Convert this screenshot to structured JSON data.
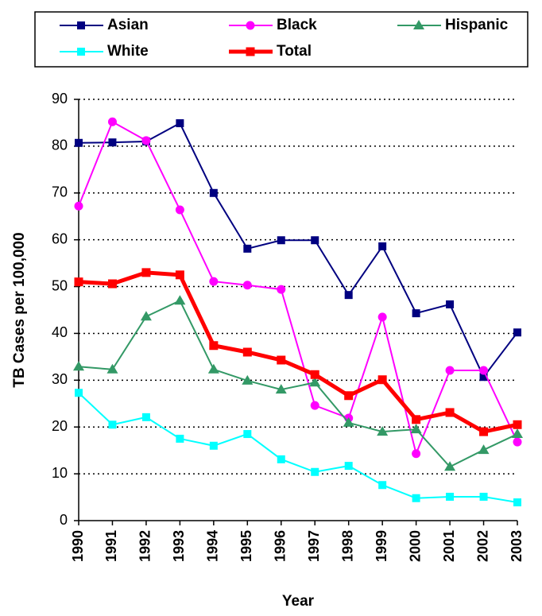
{
  "chart_data": {
    "type": "line",
    "x_label": "Year",
    "y_label": "TB Cases per 100,000",
    "categories": [
      "1990",
      "1991",
      "1992",
      "1993",
      "1994",
      "1995",
      "1996",
      "1997",
      "1998",
      "1999",
      "2000",
      "2001",
      "2002",
      "2003"
    ],
    "ylim": [
      0,
      90
    ],
    "yticks": [
      0,
      10,
      20,
      30,
      40,
      50,
      60,
      70,
      80,
      90
    ],
    "grid": true,
    "legend": "top",
    "series": [
      {
        "name": "Asian",
        "color": "#000080",
        "marker": "square",
        "values": [
          80.7,
          80.8,
          81.0,
          84.9,
          70.0,
          58.1,
          59.9,
          59.9,
          48.2,
          58.6,
          44.3,
          46.2,
          30.7,
          40.2
        ]
      },
      {
        "name": "Black",
        "color": "#ff00ff",
        "marker": "circle",
        "values": [
          67.2,
          85.2,
          81.2,
          66.4,
          51.1,
          50.3,
          49.4,
          24.6,
          21.9,
          43.5,
          14.3,
          32.1,
          32.1,
          16.8
        ]
      },
      {
        "name": "Hispanic",
        "color": "#339966",
        "marker": "triangle",
        "values": [
          32.9,
          32.3,
          43.6,
          47.0,
          32.3,
          29.9,
          28.0,
          29.5,
          20.9,
          19.0,
          19.5,
          11.5,
          15.1,
          18.5
        ]
      },
      {
        "name": "White",
        "color": "#00ffff",
        "marker": "square",
        "values": [
          27.3,
          20.5,
          22.1,
          17.5,
          16.0,
          18.5,
          13.1,
          10.4,
          11.7,
          7.6,
          4.8,
          5.1,
          5.1,
          3.9
        ]
      },
      {
        "name": "Total",
        "color": "#ff0000",
        "marker": "square",
        "thick": true,
        "values": [
          51.0,
          50.6,
          53.0,
          52.5,
          37.4,
          36.0,
          34.3,
          31.2,
          26.7,
          30.1,
          21.6,
          23.1,
          19.0,
          20.5
        ]
      }
    ]
  }
}
